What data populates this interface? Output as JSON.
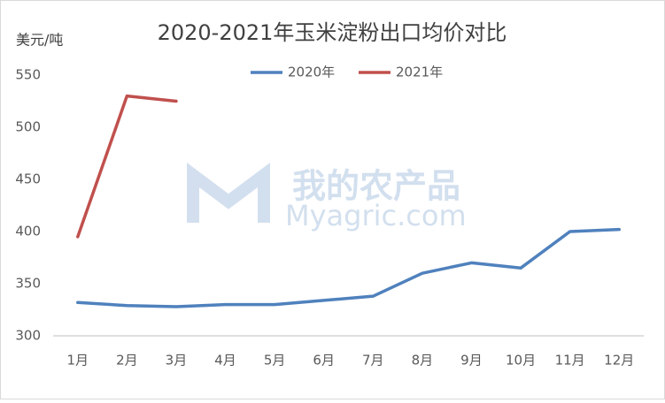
{
  "chart_data": {
    "type": "line",
    "title": "2020-2021年玉米淀粉出口均价对比",
    "ylabel": "美元/吨",
    "watermark": "我的农产品",
    "watermark_sub": "Myagric.com",
    "categories": [
      "1月",
      "2月",
      "3月",
      "4月",
      "5月",
      "6月",
      "7月",
      "8月",
      "9月",
      "10月",
      "11月",
      "12月"
    ],
    "series": [
      {
        "name": "2020年",
        "color": "#4f81bd",
        "values": [
          332,
          329,
          328,
          330,
          330,
          334,
          338,
          360,
          370,
          365,
          400,
          402
        ]
      },
      {
        "name": "2021年",
        "color": "#c0504d",
        "values": [
          395,
          530,
          525,
          null,
          null,
          null,
          null,
          null,
          null,
          null,
          null,
          null
        ]
      }
    ],
    "ylim": [
      300,
      550
    ],
    "yticks": [
      300,
      350,
      400,
      450,
      500,
      550
    ],
    "grid": false,
    "legend": "top"
  }
}
